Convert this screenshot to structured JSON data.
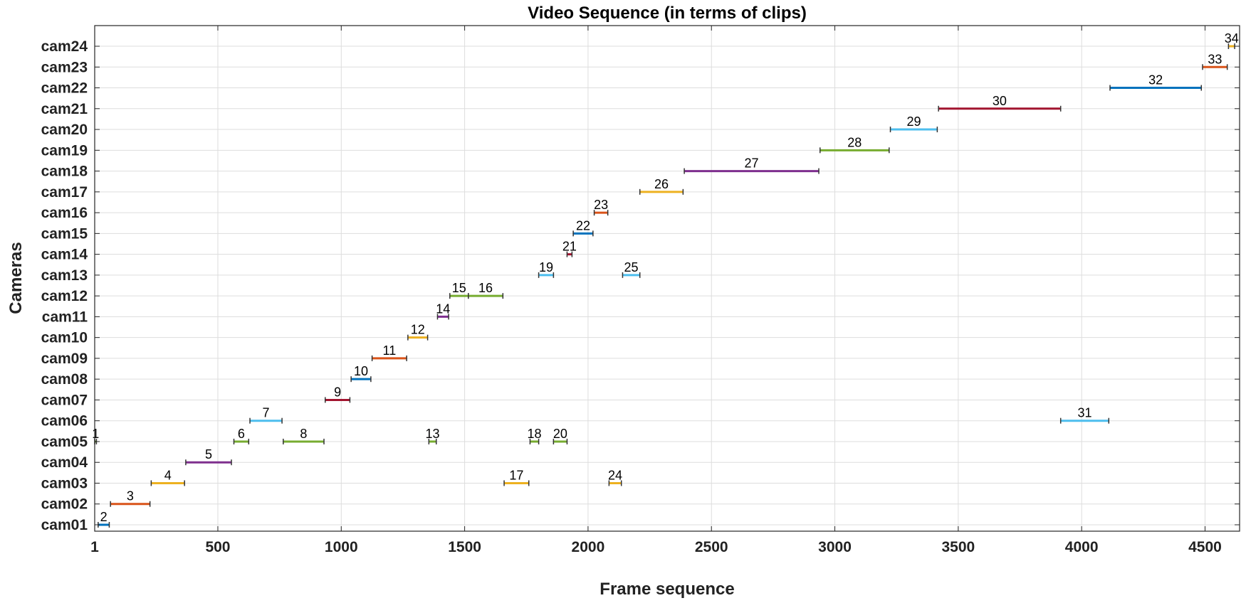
{
  "chart_data": {
    "type": "interval",
    "title": "Video Sequence (in terms of clips)",
    "xlabel": "Frame sequence",
    "ylabel": "Cameras",
    "xlim": [
      1,
      4640
    ],
    "xticks": [
      1,
      500,
      1000,
      1500,
      2000,
      2500,
      3000,
      3500,
      4000,
      4500
    ],
    "xtick_labels": [
      "1",
      "500",
      "1000",
      "1500",
      "2000",
      "2500",
      "3000",
      "3500",
      "4000",
      "4500"
    ],
    "categories": [
      "cam01",
      "cam02",
      "cam03",
      "cam04",
      "cam05",
      "cam06",
      "cam07",
      "cam08",
      "cam09",
      "cam10",
      "cam11",
      "cam12",
      "cam13",
      "cam14",
      "cam15",
      "cam16",
      "cam17",
      "cam18",
      "cam19",
      "cam20",
      "cam21",
      "cam22",
      "cam23",
      "cam24"
    ],
    "grid": true,
    "colors": {
      "blue": "#0072BD",
      "orange": "#EDB120",
      "red": "#D95319",
      "purple": "#7E2F8E",
      "green": "#77AC30",
      "cyan": "#4DBEEE",
      "darkred": "#A2142F",
      "endcap": "#333333",
      "gridline": "#dddddd"
    },
    "clips": [
      {
        "label": "1",
        "camera": "cam05",
        "start": 1,
        "end": 8,
        "color": "green"
      },
      {
        "label": "2",
        "camera": "cam01",
        "start": 15,
        "end": 60,
        "color": "blue"
      },
      {
        "label": "3",
        "camera": "cam02",
        "start": 65,
        "end": 225,
        "color": "red"
      },
      {
        "label": "4",
        "camera": "cam03",
        "start": 230,
        "end": 365,
        "color": "orange"
      },
      {
        "label": "5",
        "camera": "cam04",
        "start": 370,
        "end": 555,
        "color": "purple"
      },
      {
        "label": "6",
        "camera": "cam05",
        "start": 565,
        "end": 625,
        "color": "green"
      },
      {
        "label": "7",
        "camera": "cam06",
        "start": 630,
        "end": 760,
        "color": "cyan"
      },
      {
        "label": "8",
        "camera": "cam05",
        "start": 765,
        "end": 930,
        "color": "green"
      },
      {
        "label": "9",
        "camera": "cam07",
        "start": 935,
        "end": 1035,
        "color": "darkred"
      },
      {
        "label": "10",
        "camera": "cam08",
        "start": 1040,
        "end": 1120,
        "color": "blue"
      },
      {
        "label": "11",
        "camera": "cam09",
        "start": 1125,
        "end": 1265,
        "color": "red"
      },
      {
        "label": "12",
        "camera": "cam10",
        "start": 1270,
        "end": 1350,
        "color": "orange"
      },
      {
        "label": "13",
        "camera": "cam05",
        "start": 1355,
        "end": 1385,
        "color": "green"
      },
      {
        "label": "14",
        "camera": "cam11",
        "start": 1390,
        "end": 1435,
        "color": "purple"
      },
      {
        "label": "15",
        "camera": "cam12",
        "start": 1440,
        "end": 1515,
        "color": "green"
      },
      {
        "label": "16",
        "camera": "cam12",
        "start": 1515,
        "end": 1655,
        "color": "green"
      },
      {
        "label": "17",
        "camera": "cam03",
        "start": 1660,
        "end": 1760,
        "color": "orange"
      },
      {
        "label": "18",
        "camera": "cam05",
        "start": 1765,
        "end": 1800,
        "color": "green"
      },
      {
        "label": "19",
        "camera": "cam13",
        "start": 1800,
        "end": 1860,
        "color": "cyan"
      },
      {
        "label": "20",
        "camera": "cam05",
        "start": 1860,
        "end": 1915,
        "color": "green"
      },
      {
        "label": "21",
        "camera": "cam14",
        "start": 1915,
        "end": 1935,
        "color": "darkred"
      },
      {
        "label": "22",
        "camera": "cam15",
        "start": 1940,
        "end": 2020,
        "color": "blue"
      },
      {
        "label": "23",
        "camera": "cam16",
        "start": 2025,
        "end": 2080,
        "color": "red"
      },
      {
        "label": "24",
        "camera": "cam03",
        "start": 2085,
        "end": 2135,
        "color": "orange"
      },
      {
        "label": "25",
        "camera": "cam13",
        "start": 2140,
        "end": 2210,
        "color": "cyan"
      },
      {
        "label": "26",
        "camera": "cam17",
        "start": 2210,
        "end": 2385,
        "color": "orange"
      },
      {
        "label": "27",
        "camera": "cam18",
        "start": 2390,
        "end": 2935,
        "color": "purple"
      },
      {
        "label": "28",
        "camera": "cam19",
        "start": 2940,
        "end": 3220,
        "color": "green"
      },
      {
        "label": "29",
        "camera": "cam20",
        "start": 3225,
        "end": 3415,
        "color": "cyan"
      },
      {
        "label": "30",
        "camera": "cam21",
        "start": 3420,
        "end": 3915,
        "color": "darkred"
      },
      {
        "label": "31",
        "camera": "cam06",
        "start": 3915,
        "end": 4110,
        "color": "cyan"
      },
      {
        "label": "32",
        "camera": "cam22",
        "start": 4115,
        "end": 4485,
        "color": "blue"
      },
      {
        "label": "33",
        "camera": "cam23",
        "start": 4490,
        "end": 4590,
        "color": "red"
      },
      {
        "label": "34",
        "camera": "cam24",
        "start": 4595,
        "end": 4620,
        "color": "orange"
      }
    ]
  }
}
